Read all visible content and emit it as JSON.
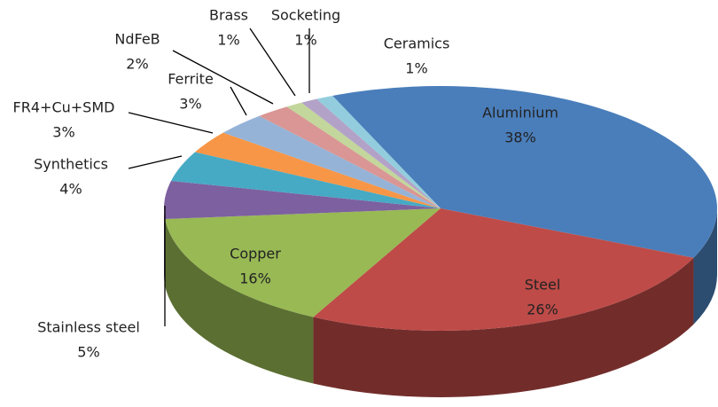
{
  "chart_data": {
    "type": "pie",
    "categories": [
      "Aluminium",
      "Steel",
      "Copper",
      "Stainless steel",
      "Synthetics",
      "FR4+Cu+SMD",
      "Ferrite",
      "NdFeB",
      "Brass",
      "Socketing",
      "Ceramics"
    ],
    "values": [
      38,
      26,
      16,
      5,
      4,
      3,
      3,
      2,
      1,
      1,
      1
    ],
    "value_labels": [
      "38%",
      "26%",
      "16%",
      "5%",
      "4%",
      "3%",
      "3%",
      "2%",
      "1%",
      "1%",
      "1%"
    ],
    "colors": [
      "#4a7ebb",
      "#be4b48",
      "#98b954",
      "#7d60a0",
      "#46aac5",
      "#f79646",
      "#95b3d7",
      "#d99694",
      "#c3d69b",
      "#b3a2c7",
      "#93cddd"
    ]
  }
}
